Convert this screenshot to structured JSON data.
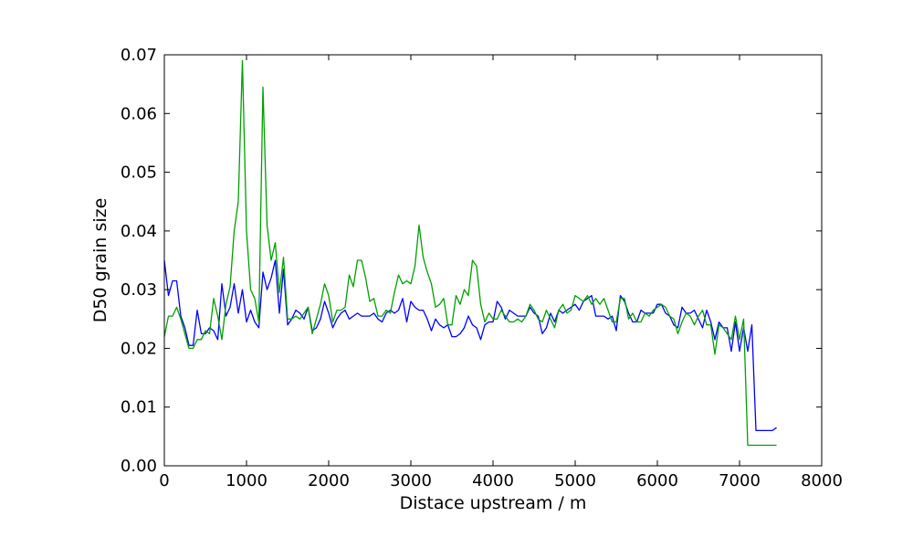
{
  "chart_data": {
    "type": "line",
    "title": "",
    "xlabel": "Distace upstream / m",
    "ylabel": "D50 grain size",
    "xlim": [
      0,
      8000
    ],
    "ylim": [
      0,
      0.07
    ],
    "grid": false,
    "x_ticks": [
      {
        "value": 0,
        "label": "0"
      },
      {
        "value": 1000,
        "label": "1000"
      },
      {
        "value": 2000,
        "label": "2000"
      },
      {
        "value": 3000,
        "label": "3000"
      },
      {
        "value": 4000,
        "label": "4000"
      },
      {
        "value": 5000,
        "label": "5000"
      },
      {
        "value": 6000,
        "label": "6000"
      },
      {
        "value": 7000,
        "label": "7000"
      },
      {
        "value": 8000,
        "label": "8000"
      }
    ],
    "y_ticks": [
      {
        "value": 0.0,
        "label": "0.00"
      },
      {
        "value": 0.01,
        "label": "0.01"
      },
      {
        "value": 0.02,
        "label": "0.02"
      },
      {
        "value": 0.03,
        "label": "0.03"
      },
      {
        "value": 0.04,
        "label": "0.04"
      },
      {
        "value": 0.05,
        "label": "0.05"
      },
      {
        "value": 0.06,
        "label": "0.06"
      },
      {
        "value": 0.07,
        "label": "0.07"
      }
    ],
    "series": [
      {
        "color": "#0000ff",
        "points": [
          [
            0,
            0.035
          ],
          [
            50,
            0.029
          ],
          [
            100,
            0.0315
          ],
          [
            150,
            0.0315
          ],
          [
            200,
            0.0255
          ],
          [
            250,
            0.0235
          ],
          [
            300,
            0.0205
          ],
          [
            350,
            0.0205
          ],
          [
            400,
            0.0265
          ],
          [
            450,
            0.0225
          ],
          [
            500,
            0.0225
          ],
          [
            550,
            0.0235
          ],
          [
            600,
            0.023
          ],
          [
            650,
            0.0215
          ],
          [
            700,
            0.031
          ],
          [
            750,
            0.0255
          ],
          [
            800,
            0.027
          ],
          [
            850,
            0.031
          ],
          [
            900,
            0.026
          ],
          [
            950,
            0.03
          ],
          [
            1000,
            0.0245
          ],
          [
            1050,
            0.0265
          ],
          [
            1100,
            0.0245
          ],
          [
            1150,
            0.0235
          ],
          [
            1200,
            0.033
          ],
          [
            1250,
            0.03
          ],
          [
            1300,
            0.032
          ],
          [
            1350,
            0.035
          ],
          [
            1400,
            0.026
          ],
          [
            1450,
            0.0335
          ],
          [
            1500,
            0.024
          ],
          [
            1550,
            0.025
          ],
          [
            1600,
            0.0265
          ],
          [
            1650,
            0.026
          ],
          [
            1700,
            0.025
          ],
          [
            1750,
            0.027
          ],
          [
            1800,
            0.023
          ],
          [
            1850,
            0.0235
          ],
          [
            1900,
            0.025
          ],
          [
            1950,
            0.028
          ],
          [
            2000,
            0.026
          ],
          [
            2050,
            0.0235
          ],
          [
            2100,
            0.025
          ],
          [
            2150,
            0.026
          ],
          [
            2200,
            0.0265
          ],
          [
            2250,
            0.025
          ],
          [
            2300,
            0.0255
          ],
          [
            2350,
            0.026
          ],
          [
            2400,
            0.0255
          ],
          [
            2450,
            0.0255
          ],
          [
            2500,
            0.0255
          ],
          [
            2550,
            0.026
          ],
          [
            2600,
            0.025
          ],
          [
            2650,
            0.0245
          ],
          [
            2700,
            0.026
          ],
          [
            2750,
            0.0265
          ],
          [
            2800,
            0.026
          ],
          [
            2850,
            0.0265
          ],
          [
            2900,
            0.0285
          ],
          [
            2950,
            0.0245
          ],
          [
            3000,
            0.028
          ],
          [
            3050,
            0.027
          ],
          [
            3100,
            0.0265
          ],
          [
            3150,
            0.0265
          ],
          [
            3200,
            0.025
          ],
          [
            3250,
            0.023
          ],
          [
            3300,
            0.025
          ],
          [
            3350,
            0.024
          ],
          [
            3400,
            0.0235
          ],
          [
            3450,
            0.024
          ],
          [
            3500,
            0.022
          ],
          [
            3550,
            0.022
          ],
          [
            3600,
            0.0225
          ],
          [
            3650,
            0.0235
          ],
          [
            3700,
            0.0255
          ],
          [
            3750,
            0.024
          ],
          [
            3800,
            0.0235
          ],
          [
            3850,
            0.0215
          ],
          [
            3900,
            0.024
          ],
          [
            3950,
            0.0245
          ],
          [
            4000,
            0.0245
          ],
          [
            4050,
            0.028
          ],
          [
            4100,
            0.027
          ],
          [
            4150,
            0.025
          ],
          [
            4200,
            0.0265
          ],
          [
            4250,
            0.026
          ],
          [
            4300,
            0.0255
          ],
          [
            4350,
            0.0255
          ],
          [
            4400,
            0.0255
          ],
          [
            4450,
            0.027
          ],
          [
            4500,
            0.026
          ],
          [
            4550,
            0.0255
          ],
          [
            4600,
            0.0225
          ],
          [
            4650,
            0.0235
          ],
          [
            4700,
            0.026
          ],
          [
            4750,
            0.0245
          ],
          [
            4800,
            0.0265
          ],
          [
            4850,
            0.026
          ],
          [
            4900,
            0.0265
          ],
          [
            4950,
            0.027
          ],
          [
            5000,
            0.0275
          ],
          [
            5050,
            0.0265
          ],
          [
            5100,
            0.028
          ],
          [
            5150,
            0.0285
          ],
          [
            5200,
            0.029
          ],
          [
            5250,
            0.0255
          ],
          [
            5300,
            0.0255
          ],
          [
            5350,
            0.0255
          ],
          [
            5400,
            0.025
          ],
          [
            5450,
            0.0255
          ],
          [
            5500,
            0.023
          ],
          [
            5550,
            0.029
          ],
          [
            5600,
            0.028
          ],
          [
            5650,
            0.026
          ],
          [
            5700,
            0.0245
          ],
          [
            5750,
            0.0245
          ],
          [
            5800,
            0.0265
          ],
          [
            5850,
            0.026
          ],
          [
            5900,
            0.026
          ],
          [
            5950,
            0.026
          ],
          [
            6000,
            0.0275
          ],
          [
            6050,
            0.0275
          ],
          [
            6100,
            0.026
          ],
          [
            6150,
            0.0255
          ],
          [
            6200,
            0.024
          ],
          [
            6250,
            0.0235
          ],
          [
            6300,
            0.027
          ],
          [
            6350,
            0.026
          ],
          [
            6400,
            0.026
          ],
          [
            6450,
            0.0265
          ],
          [
            6500,
            0.025
          ],
          [
            6550,
            0.0235
          ],
          [
            6600,
            0.0265
          ],
          [
            6650,
            0.0245
          ],
          [
            6700,
            0.0215
          ],
          [
            6750,
            0.0245
          ],
          [
            6800,
            0.0235
          ],
          [
            6850,
            0.0235
          ],
          [
            6900,
            0.0195
          ],
          [
            6950,
            0.0245
          ],
          [
            7000,
            0.0195
          ],
          [
            7050,
            0.0235
          ],
          [
            7100,
            0.0195
          ],
          [
            7150,
            0.024
          ],
          [
            7200,
            0.006
          ],
          [
            7250,
            0.006
          ],
          [
            7300,
            0.006
          ],
          [
            7350,
            0.006
          ],
          [
            7400,
            0.006
          ],
          [
            7450,
            0.0065
          ]
        ]
      },
      {
        "color": "#00a000",
        "points": [
          [
            0,
            0.022
          ],
          [
            50,
            0.0255
          ],
          [
            100,
            0.0255
          ],
          [
            150,
            0.027
          ],
          [
            200,
            0.025
          ],
          [
            250,
            0.0225
          ],
          [
            300,
            0.02
          ],
          [
            350,
            0.02
          ],
          [
            400,
            0.0215
          ],
          [
            450,
            0.0215
          ],
          [
            500,
            0.023
          ],
          [
            550,
            0.0225
          ],
          [
            600,
            0.0285
          ],
          [
            650,
            0.0255
          ],
          [
            700,
            0.0215
          ],
          [
            750,
            0.0275
          ],
          [
            800,
            0.0305
          ],
          [
            850,
            0.04
          ],
          [
            900,
            0.045
          ],
          [
            950,
            0.069
          ],
          [
            1000,
            0.04
          ],
          [
            1050,
            0.03
          ],
          [
            1100,
            0.0285
          ],
          [
            1150,
            0.0245
          ],
          [
            1200,
            0.0645
          ],
          [
            1250,
            0.041
          ],
          [
            1300,
            0.035
          ],
          [
            1350,
            0.038
          ],
          [
            1400,
            0.0295
          ],
          [
            1450,
            0.0355
          ],
          [
            1500,
            0.025
          ],
          [
            1550,
            0.025
          ],
          [
            1600,
            0.0255
          ],
          [
            1650,
            0.025
          ],
          [
            1700,
            0.026
          ],
          [
            1750,
            0.027
          ],
          [
            1800,
            0.0225
          ],
          [
            1850,
            0.025
          ],
          [
            1900,
            0.0275
          ],
          [
            1950,
            0.031
          ],
          [
            2000,
            0.029
          ],
          [
            2050,
            0.0245
          ],
          [
            2100,
            0.0265
          ],
          [
            2150,
            0.0265
          ],
          [
            2200,
            0.027
          ],
          [
            2250,
            0.0325
          ],
          [
            2300,
            0.0305
          ],
          [
            2350,
            0.035
          ],
          [
            2400,
            0.035
          ],
          [
            2450,
            0.032
          ],
          [
            2500,
            0.028
          ],
          [
            2550,
            0.0285
          ],
          [
            2600,
            0.0255
          ],
          [
            2650,
            0.0255
          ],
          [
            2700,
            0.0265
          ],
          [
            2750,
            0.026
          ],
          [
            2800,
            0.0295
          ],
          [
            2850,
            0.0325
          ],
          [
            2900,
            0.031
          ],
          [
            2950,
            0.0315
          ],
          [
            3000,
            0.031
          ],
          [
            3050,
            0.034
          ],
          [
            3100,
            0.041
          ],
          [
            3150,
            0.0355
          ],
          [
            3200,
            0.033
          ],
          [
            3250,
            0.031
          ],
          [
            3300,
            0.027
          ],
          [
            3350,
            0.0275
          ],
          [
            3400,
            0.0285
          ],
          [
            3450,
            0.024
          ],
          [
            3500,
            0.024
          ],
          [
            3550,
            0.029
          ],
          [
            3600,
            0.0275
          ],
          [
            3650,
            0.03
          ],
          [
            3700,
            0.029
          ],
          [
            3750,
            0.035
          ],
          [
            3800,
            0.034
          ],
          [
            3850,
            0.0275
          ],
          [
            3900,
            0.0245
          ],
          [
            3950,
            0.026
          ],
          [
            4000,
            0.025
          ],
          [
            4050,
            0.025
          ],
          [
            4100,
            0.0265
          ],
          [
            4150,
            0.0255
          ],
          [
            4200,
            0.0245
          ],
          [
            4250,
            0.0245
          ],
          [
            4300,
            0.025
          ],
          [
            4350,
            0.0245
          ],
          [
            4400,
            0.0255
          ],
          [
            4450,
            0.0275
          ],
          [
            4500,
            0.0265
          ],
          [
            4550,
            0.025
          ],
          [
            4600,
            0.0245
          ],
          [
            4650,
            0.0265
          ],
          [
            4700,
            0.025
          ],
          [
            4750,
            0.0235
          ],
          [
            4800,
            0.0265
          ],
          [
            4850,
            0.0275
          ],
          [
            4900,
            0.026
          ],
          [
            4950,
            0.0265
          ],
          [
            5000,
            0.029
          ],
          [
            5050,
            0.0285
          ],
          [
            5100,
            0.028
          ],
          [
            5150,
            0.029
          ],
          [
            5200,
            0.0275
          ],
          [
            5250,
            0.0285
          ],
          [
            5300,
            0.0275
          ],
          [
            5350,
            0.0285
          ],
          [
            5400,
            0.0265
          ],
          [
            5450,
            0.0245
          ],
          [
            5500,
            0.0245
          ],
          [
            5550,
            0.0285
          ],
          [
            5600,
            0.0285
          ],
          [
            5650,
            0.025
          ],
          [
            5700,
            0.026
          ],
          [
            5750,
            0.0245
          ],
          [
            5800,
            0.0245
          ],
          [
            5850,
            0.026
          ],
          [
            5900,
            0.0255
          ],
          [
            5950,
            0.0265
          ],
          [
            6000,
            0.027
          ],
          [
            6050,
            0.0275
          ],
          [
            6100,
            0.027
          ],
          [
            6150,
            0.0255
          ],
          [
            6200,
            0.025
          ],
          [
            6250,
            0.0225
          ],
          [
            6300,
            0.0245
          ],
          [
            6350,
            0.026
          ],
          [
            6400,
            0.0255
          ],
          [
            6450,
            0.024
          ],
          [
            6500,
            0.0255
          ],
          [
            6550,
            0.0265
          ],
          [
            6600,
            0.024
          ],
          [
            6650,
            0.024
          ],
          [
            6700,
            0.019
          ],
          [
            6750,
            0.024
          ],
          [
            6800,
            0.0235
          ],
          [
            6850,
            0.0225
          ],
          [
            6900,
            0.0215
          ],
          [
            6950,
            0.0255
          ],
          [
            7000,
            0.0215
          ],
          [
            7050,
            0.025
          ],
          [
            7100,
            0.0035
          ],
          [
            7150,
            0.0035
          ],
          [
            7200,
            0.0035
          ],
          [
            7250,
            0.0035
          ],
          [
            7300,
            0.0035
          ],
          [
            7350,
            0.0035
          ],
          [
            7400,
            0.0035
          ],
          [
            7450,
            0.0035
          ]
        ]
      }
    ]
  }
}
